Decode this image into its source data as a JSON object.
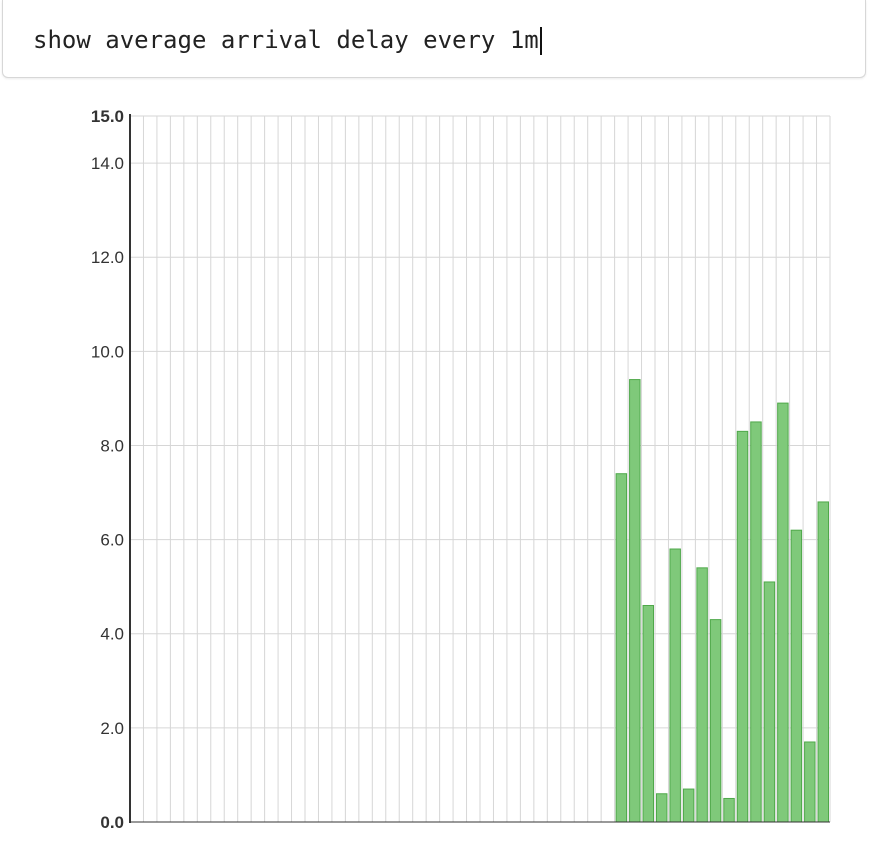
{
  "query": {
    "value": "show average arrival delay every 1m",
    "placeholder": ""
  },
  "colors": {
    "bar_fill": "#7fc97a",
    "bar_stroke": "#4fa84a",
    "grid": "#d6d6d6",
    "axis": "#333333",
    "tick_text": "#333333"
  },
  "chart_data": {
    "type": "bar",
    "title": "",
    "xlabel": "",
    "ylabel": "",
    "ylim": [
      0,
      15
    ],
    "yticks": [
      "0.0",
      "2.0",
      "4.0",
      "6.0",
      "8.0",
      "10.0",
      "12.0",
      "14.0",
      "15.0"
    ],
    "yticks_values": [
      0,
      2,
      4,
      6,
      8,
      10,
      12,
      14,
      15
    ],
    "grid": true,
    "values": [
      0,
      0,
      0,
      0,
      0,
      0,
      0,
      0,
      0,
      0,
      0,
      0,
      0,
      0,
      0,
      0,
      0,
      0,
      0,
      0,
      0,
      0,
      0,
      0,
      0,
      0,
      0,
      0,
      0,
      0,
      0,
      0,
      0,
      0,
      0,
      0,
      7.4,
      9.4,
      4.6,
      0.6,
      5.8,
      0.7,
      5.4,
      4.3,
      0.5,
      8.3,
      8.5,
      5.1,
      8.9,
      6.2,
      1.7,
      6.8
    ]
  }
}
